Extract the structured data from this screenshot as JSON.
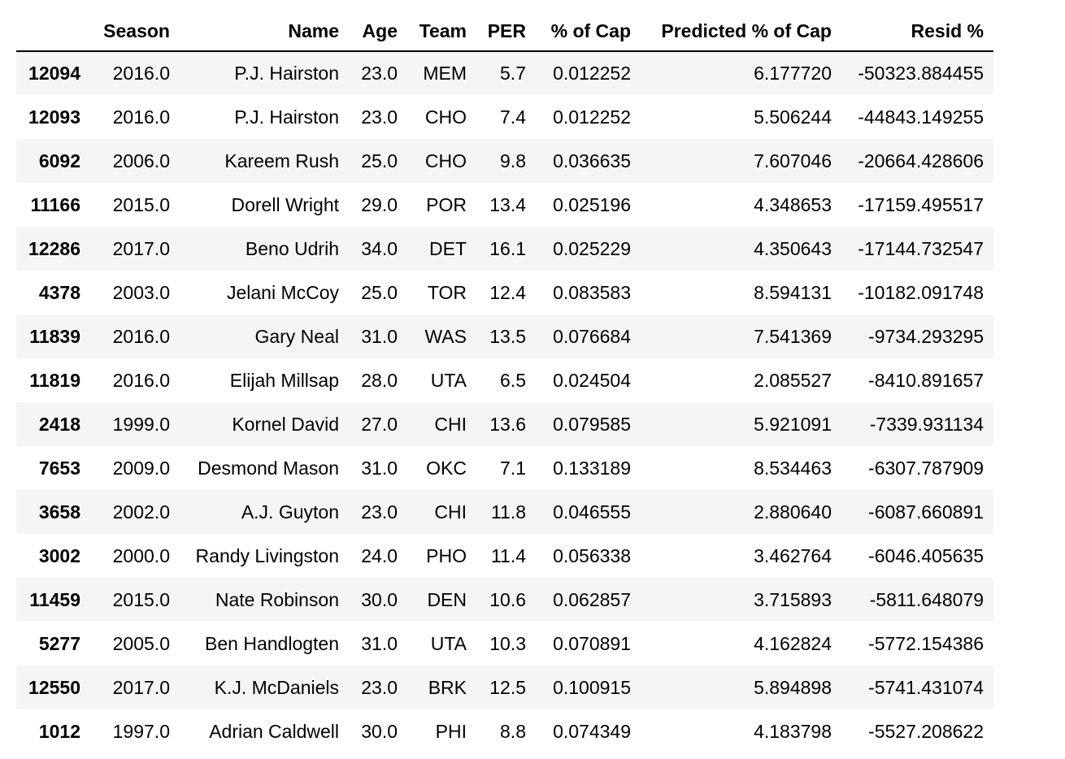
{
  "columns": [
    "",
    "Season",
    "Name",
    "Age",
    "Team",
    "PER",
    "% of Cap",
    "Predicted % of Cap",
    "Resid %"
  ],
  "rows": [
    {
      "index": "12094",
      "season": "2016.0",
      "name": "P.J. Hairston",
      "age": "23.0",
      "team": "MEM",
      "per": "5.7",
      "cap": "0.012252",
      "pred": "6.177720",
      "resid": "-50323.884455"
    },
    {
      "index": "12093",
      "season": "2016.0",
      "name": "P.J. Hairston",
      "age": "23.0",
      "team": "CHO",
      "per": "7.4",
      "cap": "0.012252",
      "pred": "5.506244",
      "resid": "-44843.149255"
    },
    {
      "index": "6092",
      "season": "2006.0",
      "name": "Kareem Rush",
      "age": "25.0",
      "team": "CHO",
      "per": "9.8",
      "cap": "0.036635",
      "pred": "7.607046",
      "resid": "-20664.428606"
    },
    {
      "index": "11166",
      "season": "2015.0",
      "name": "Dorell Wright",
      "age": "29.0",
      "team": "POR",
      "per": "13.4",
      "cap": "0.025196",
      "pred": "4.348653",
      "resid": "-17159.495517"
    },
    {
      "index": "12286",
      "season": "2017.0",
      "name": "Beno Udrih",
      "age": "34.0",
      "team": "DET",
      "per": "16.1",
      "cap": "0.025229",
      "pred": "4.350643",
      "resid": "-17144.732547"
    },
    {
      "index": "4378",
      "season": "2003.0",
      "name": "Jelani McCoy",
      "age": "25.0",
      "team": "TOR",
      "per": "12.4",
      "cap": "0.083583",
      "pred": "8.594131",
      "resid": "-10182.091748"
    },
    {
      "index": "11839",
      "season": "2016.0",
      "name": "Gary Neal",
      "age": "31.0",
      "team": "WAS",
      "per": "13.5",
      "cap": "0.076684",
      "pred": "7.541369",
      "resid": "-9734.293295"
    },
    {
      "index": "11819",
      "season": "2016.0",
      "name": "Elijah Millsap",
      "age": "28.0",
      "team": "UTA",
      "per": "6.5",
      "cap": "0.024504",
      "pred": "2.085527",
      "resid": "-8410.891657"
    },
    {
      "index": "2418",
      "season": "1999.0",
      "name": "Kornel David",
      "age": "27.0",
      "team": "CHI",
      "per": "13.6",
      "cap": "0.079585",
      "pred": "5.921091",
      "resid": "-7339.931134"
    },
    {
      "index": "7653",
      "season": "2009.0",
      "name": "Desmond Mason",
      "age": "31.0",
      "team": "OKC",
      "per": "7.1",
      "cap": "0.133189",
      "pred": "8.534463",
      "resid": "-6307.787909"
    },
    {
      "index": "3658",
      "season": "2002.0",
      "name": "A.J. Guyton",
      "age": "23.0",
      "team": "CHI",
      "per": "11.8",
      "cap": "0.046555",
      "pred": "2.880640",
      "resid": "-6087.660891"
    },
    {
      "index": "3002",
      "season": "2000.0",
      "name": "Randy Livingston",
      "age": "24.0",
      "team": "PHO",
      "per": "11.4",
      "cap": "0.056338",
      "pred": "3.462764",
      "resid": "-6046.405635"
    },
    {
      "index": "11459",
      "season": "2015.0",
      "name": "Nate Robinson",
      "age": "30.0",
      "team": "DEN",
      "per": "10.6",
      "cap": "0.062857",
      "pred": "3.715893",
      "resid": "-5811.648079"
    },
    {
      "index": "5277",
      "season": "2005.0",
      "name": "Ben Handlogten",
      "age": "31.0",
      "team": "UTA",
      "per": "10.3",
      "cap": "0.070891",
      "pred": "4.162824",
      "resid": "-5772.154386"
    },
    {
      "index": "12550",
      "season": "2017.0",
      "name": "K.J. McDaniels",
      "age": "23.0",
      "team": "BRK",
      "per": "12.5",
      "cap": "0.100915",
      "pred": "5.894898",
      "resid": "-5741.431074"
    },
    {
      "index": "1012",
      "season": "1997.0",
      "name": "Adrian Caldwell",
      "age": "30.0",
      "team": "PHI",
      "per": "8.8",
      "cap": "0.074349",
      "pred": "4.183798",
      "resid": "-5527.208622"
    }
  ]
}
